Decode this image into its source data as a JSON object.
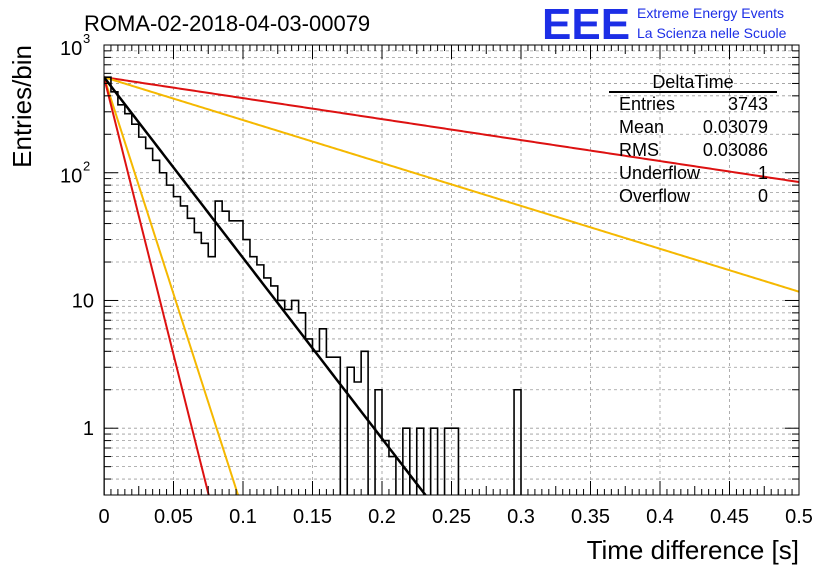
{
  "chart_data": {
    "type": "histogram",
    "title": "ROMA-02-2018-04-03-00079",
    "xlabel": "Time difference [s]",
    "ylabel": "Entries/bin",
    "xlim": [
      0,
      0.5
    ],
    "ylim": [
      0.3,
      1000
    ],
    "y_scale": "log",
    "grid": true,
    "x_ticks": [
      "0",
      "0.05",
      "0.1",
      "0.15",
      "0.2",
      "0.25",
      "0.3",
      "0.35",
      "0.4",
      "0.45",
      "0.5"
    ],
    "y_ticks": [
      {
        "label": "1",
        "value": 1
      },
      {
        "label": "10",
        "value": 10
      }
    ],
    "y_ticks_pow": [
      {
        "base": "10",
        "exp": "2",
        "value": 100
      },
      {
        "base": "10",
        "exp": "3",
        "value": 1000
      }
    ],
    "histogram": {
      "bin_width": 0.005,
      "counts": [
        560,
        430,
        340,
        290,
        240,
        190,
        155,
        125,
        100,
        80,
        65,
        55,
        44,
        34,
        28,
        22,
        60,
        50,
        42,
        42,
        30,
        22,
        19,
        15,
        13,
        10,
        8.5,
        10,
        8,
        5,
        4,
        6,
        3.6,
        3.6,
        0,
        3,
        2.3,
        4,
        0,
        2,
        0.8,
        0.6,
        0,
        1,
        0,
        1,
        0,
        1,
        0,
        1,
        1,
        0,
        0,
        0,
        0,
        0,
        0,
        0,
        0,
        2,
        0,
        0,
        0,
        0,
        0,
        0,
        0,
        0,
        0,
        0,
        0,
        0,
        0,
        0,
        0,
        0,
        0,
        0,
        0,
        0,
        0,
        0,
        0,
        0,
        0,
        0,
        0,
        0,
        0,
        0,
        0,
        0,
        0,
        0,
        0,
        0,
        0,
        0,
        0,
        0
      ]
    },
    "fits": [
      {
        "name": "fit",
        "color": "#000000",
        "y0": 560,
        "tau": 0.0307
      },
      {
        "name": "slow-red",
        "color": "#dd1111",
        "y0": 560,
        "tau": 0.2645
      },
      {
        "name": "slow-yellow",
        "color": "#f5b800",
        "y0": 560,
        "tau": 0.1293
      },
      {
        "name": "fast-yellow",
        "color": "#f5b800",
        "y0": 560,
        "tau": 0.0128
      },
      {
        "name": "fast-red",
        "color": "#dd1111",
        "y0": 560,
        "tau": 0.01
      }
    ],
    "stats_box": {
      "title": "DeltaTime",
      "rows": [
        {
          "label": "Entries",
          "value": "3743"
        },
        {
          "label": "Mean",
          "value": "0.03079"
        },
        {
          "label": "RMS",
          "value": "0.03086"
        },
        {
          "label": "Underflow",
          "value": "1"
        },
        {
          "label": "Overflow",
          "value": "0"
        }
      ]
    },
    "logo": {
      "text": "EEE",
      "line1": "Extreme Energy Events",
      "line2": "La Scienza nelle Scuole",
      "color": "#1c2ee6"
    }
  }
}
